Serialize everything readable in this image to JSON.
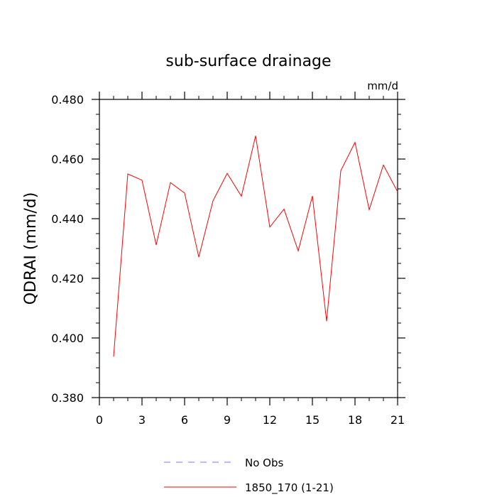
{
  "chart_data": {
    "type": "line",
    "title": "sub-surface drainage",
    "units_label": "mm/d",
    "ylabel": "QDRAI  (mm/d)",
    "xlabel": "",
    "xlim": [
      0,
      21
    ],
    "ylim": [
      0.38,
      0.48
    ],
    "x_ticks": [
      0,
      3,
      6,
      9,
      12,
      15,
      18,
      21
    ],
    "x_tick_labels": [
      "0",
      "3",
      "6",
      "9",
      "12",
      "15",
      "18",
      "21"
    ],
    "y_ticks": [
      0.38,
      0.4,
      0.42,
      0.44,
      0.46,
      0.48
    ],
    "y_tick_labels": [
      "0.380",
      "0.400",
      "0.420",
      "0.440",
      "0.460",
      "0.480"
    ],
    "grid": false,
    "legend_position": "bottom",
    "series": [
      {
        "name": "1850_170 (1-21)",
        "color": "#ff0000",
        "style": "solid",
        "x": [
          1,
          2,
          3,
          4,
          5,
          6,
          7,
          8,
          9,
          10,
          11,
          12,
          13,
          14,
          15,
          16,
          17,
          18,
          19,
          20,
          21
        ],
        "y": [
          0.3937,
          0.455,
          0.4529,
          0.4312,
          0.4521,
          0.4486,
          0.4271,
          0.446,
          0.4552,
          0.4475,
          0.4678,
          0.4372,
          0.4432,
          0.4292,
          0.4476,
          0.4056,
          0.4561,
          0.4656,
          0.443,
          0.458,
          0.449
        ]
      }
    ],
    "legend": [
      {
        "label": "No Obs",
        "color": "#7777ff",
        "style": "dashed"
      },
      {
        "label": "1850_170 (1-21)",
        "color": "#ff0000",
        "style": "solid"
      }
    ]
  }
}
